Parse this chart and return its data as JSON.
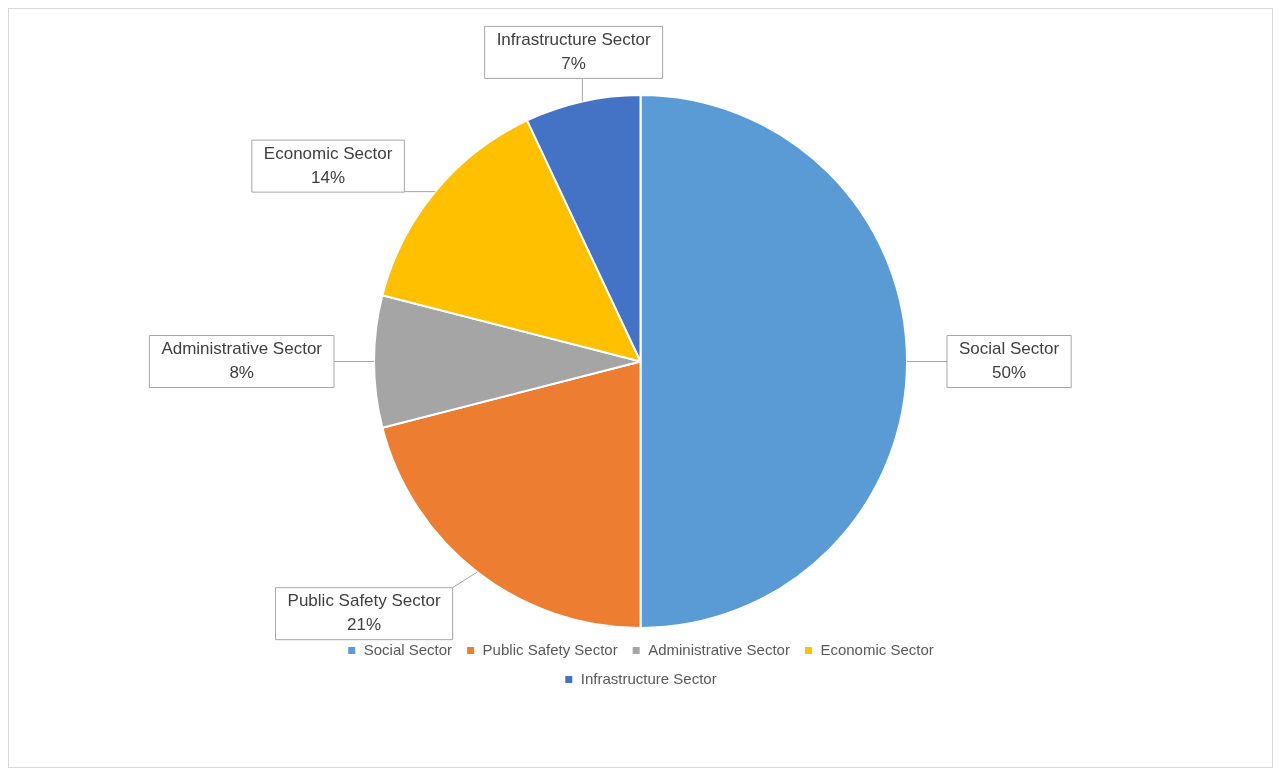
{
  "chart_data": {
    "type": "pie",
    "categories": [
      "Social Sector",
      "Public Safety Sector",
      "Administrative Sector",
      "Economic Sector",
      "Infrastructure Sector"
    ],
    "values": [
      50,
      21,
      8,
      14,
      7
    ],
    "colors": [
      "#5b9bd5",
      "#ed7d31",
      "#a5a5a5",
      "#ffc000",
      "#4472c4"
    ],
    "value_labels": [
      "50%",
      "21%",
      "8%",
      "14%",
      "7%"
    ],
    "legend": "bottom"
  }
}
